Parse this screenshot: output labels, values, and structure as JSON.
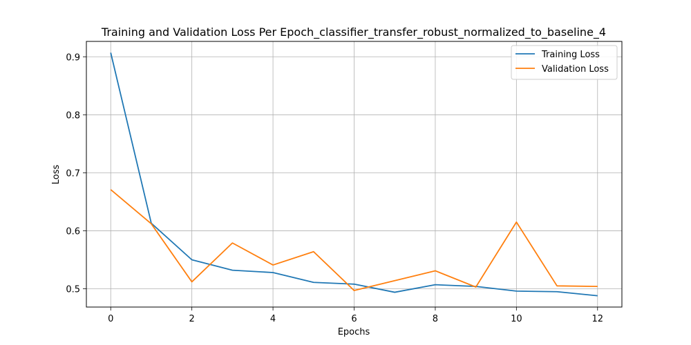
{
  "chart_data": {
    "type": "line",
    "title": "Training and Validation Loss Per Epoch_classifier_transfer_robust_normalized_to_baseline_4",
    "xlabel": "Epochs",
    "ylabel": "Loss",
    "xlim": [
      -0.6,
      12.6
    ],
    "ylim": [
      0.4685,
      0.9265
    ],
    "xticks": [
      0,
      2,
      4,
      6,
      8,
      10,
      12
    ],
    "yticks": [
      0.5,
      0.6,
      0.7,
      0.8,
      0.9
    ],
    "grid": true,
    "legend_position": "top-right",
    "x": [
      0,
      1,
      2,
      3,
      4,
      5,
      6,
      7,
      8,
      9,
      10,
      11,
      12
    ],
    "series": [
      {
        "name": "Training Loss",
        "color": "#1f77b4",
        "values": [
          0.907,
          0.613,
          0.55,
          0.532,
          0.528,
          0.511,
          0.508,
          0.494,
          0.507,
          0.504,
          0.496,
          0.495,
          0.488
        ]
      },
      {
        "name": "Validation Loss",
        "color": "#ff7f0e",
        "values": [
          0.671,
          0.612,
          0.512,
          0.579,
          0.541,
          0.564,
          0.497,
          0.514,
          0.531,
          0.503,
          0.615,
          0.505,
          0.504
        ]
      }
    ]
  }
}
